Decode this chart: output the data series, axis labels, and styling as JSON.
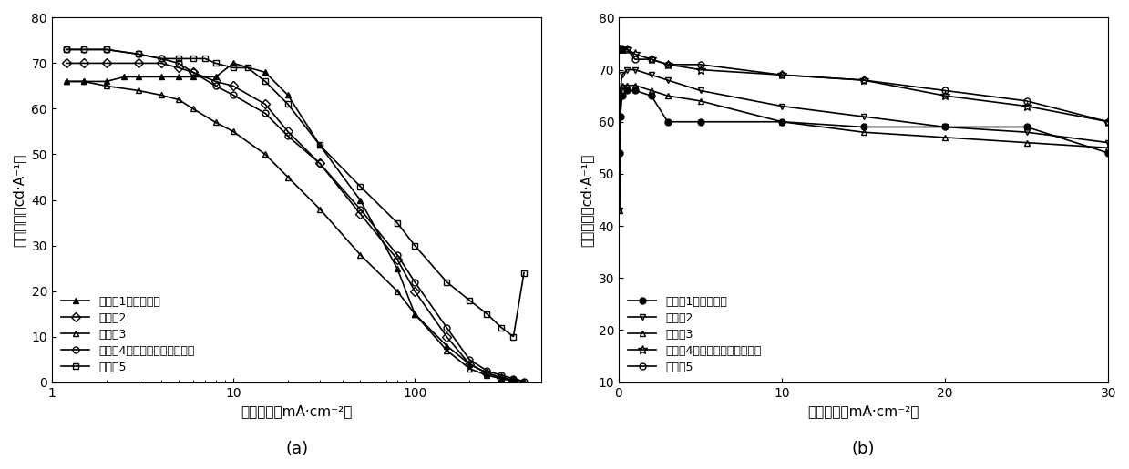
{
  "fig_width": 12.39,
  "fig_height": 5.15,
  "ylabel": "电流效率（cd·A⁻¹）",
  "xlabel_a": "电流密度（mA·cm⁻²）",
  "xlabel_b": "电流密度（mA·cm⁻²）",
  "label_a": "(a)",
  "label_b": "(b)",
  "legend_labels_a": [
    "实施例1（对比例）",
    "实施例2",
    "实施例3",
    "实施例4（本发明优选实施例）",
    "实施例5"
  ],
  "legend_labels_b": [
    "实施例1（对比例）",
    "实施例2",
    "实施例3",
    "实施例4（本发明优选实施例）",
    "实施例5"
  ],
  "plot_a": {
    "xlim": [
      1,
      500
    ],
    "ylim": [
      0,
      80
    ],
    "yticks": [
      0,
      10,
      20,
      30,
      40,
      50,
      60,
      70,
      80
    ],
    "xticks": [
      1,
      10,
      100
    ],
    "series": [
      {
        "x": [
          1.2,
          1.5,
          2,
          2.5,
          3,
          4,
          5,
          6,
          8,
          10,
          15,
          20,
          30,
          50,
          80,
          100,
          150,
          200,
          250,
          300,
          350,
          400
        ],
        "y": [
          66,
          66,
          66,
          67,
          67,
          67,
          67,
          67,
          67,
          70,
          68,
          63,
          52,
          40,
          25,
          15,
          8,
          4,
          2,
          1,
          0.5,
          0.2
        ],
        "marker": "^",
        "fillstyle": "full",
        "ms": 5,
        "lw": 1.2
      },
      {
        "x": [
          1.2,
          1.5,
          2,
          3,
          4,
          5,
          6,
          8,
          10,
          15,
          20,
          30,
          50,
          80,
          100,
          150,
          200,
          250,
          300,
          350
        ],
        "y": [
          70,
          70,
          70,
          70,
          70,
          69,
          68,
          66,
          65,
          61,
          55,
          48,
          37,
          27,
          20,
          10,
          4,
          2,
          1,
          0.3
        ],
        "marker": "D",
        "fillstyle": "none",
        "ms": 5,
        "lw": 1.2
      },
      {
        "x": [
          1.2,
          1.5,
          2,
          3,
          4,
          5,
          6,
          8,
          10,
          15,
          20,
          30,
          50,
          80,
          100,
          150,
          200,
          250,
          300,
          350
        ],
        "y": [
          66,
          66,
          65,
          64,
          63,
          62,
          60,
          57,
          55,
          50,
          45,
          38,
          28,
          20,
          15,
          7,
          3,
          1.5,
          0.8,
          0.3
        ],
        "marker": "^",
        "fillstyle": "none",
        "ms": 5,
        "lw": 1.2
      },
      {
        "x": [
          1.2,
          1.5,
          2,
          3,
          4,
          5,
          6,
          8,
          10,
          15,
          20,
          30,
          50,
          80,
          100,
          150,
          200,
          250,
          300,
          350,
          400
        ],
        "y": [
          73,
          73,
          73,
          72,
          71,
          70,
          68,
          65,
          63,
          59,
          54,
          48,
          38,
          28,
          22,
          12,
          5,
          2.5,
          1.5,
          0.8,
          0.2
        ],
        "marker": "o",
        "fillstyle": "none",
        "ms": 5,
        "lw": 1.2
      },
      {
        "x": [
          1.2,
          1.5,
          2,
          3,
          4,
          5,
          6,
          7,
          8,
          10,
          12,
          15,
          20,
          30,
          50,
          80,
          100,
          150,
          200,
          250,
          300,
          350,
          400
        ],
        "y": [
          73,
          73,
          73,
          72,
          71,
          71,
          71,
          71,
          70,
          69,
          69,
          66,
          61,
          52,
          43,
          35,
          30,
          22,
          18,
          15,
          12,
          10,
          24
        ],
        "marker": "s",
        "fillstyle": "none",
        "ms": 5,
        "lw": 1.2
      }
    ]
  },
  "plot_b": {
    "xlim": [
      0,
      30
    ],
    "ylim": [
      10,
      80
    ],
    "yticks": [
      10,
      20,
      30,
      40,
      50,
      60,
      70,
      80
    ],
    "xticks": [
      0,
      10,
      20,
      30
    ],
    "series": [
      {
        "x": [
          0.05,
          0.1,
          0.2,
          0.5,
          1,
          2,
          3,
          5,
          10,
          15,
          20,
          25,
          30
        ],
        "y": [
          54,
          61,
          65,
          66,
          66,
          65,
          60,
          60,
          60,
          59,
          59,
          59,
          54
        ],
        "marker": "o",
        "fillstyle": "full",
        "ms": 5,
        "lw": 1.2
      },
      {
        "x": [
          0.05,
          0.1,
          0.2,
          0.5,
          1,
          2,
          3,
          5,
          10,
          15,
          20,
          25,
          30
        ],
        "y": [
          43,
          66,
          69,
          70,
          70,
          69,
          68,
          66,
          63,
          61,
          59,
          58,
          56
        ],
        "marker": "v",
        "fillstyle": "none",
        "ms": 5,
        "lw": 1.2
      },
      {
        "x": [
          0.05,
          0.1,
          0.2,
          0.5,
          1,
          2,
          3,
          5,
          10,
          15,
          20,
          25,
          30
        ],
        "y": [
          43,
          65,
          67,
          67,
          67,
          66,
          65,
          64,
          60,
          58,
          57,
          56,
          55
        ],
        "marker": "^",
        "fillstyle": "none",
        "ms": 5,
        "lw": 1.2
      },
      {
        "x": [
          0.05,
          0.1,
          0.2,
          0.5,
          1,
          2,
          3,
          5,
          10,
          15,
          20,
          25,
          30
        ],
        "y": [
          74,
          74,
          74,
          74,
          73,
          72,
          71,
          70,
          69,
          68,
          65,
          63,
          60
        ],
        "marker": "*",
        "fillstyle": "none",
        "ms": 7,
        "lw": 1.2
      },
      {
        "x": [
          0.05,
          0.1,
          0.2,
          0.5,
          1,
          2,
          3,
          5,
          10,
          15,
          20,
          25,
          30
        ],
        "y": [
          74,
          74,
          74,
          74,
          72,
          72,
          71,
          71,
          69,
          68,
          66,
          64,
          60
        ],
        "marker": "o",
        "fillstyle": "none",
        "ms": 5,
        "lw": 1.2
      }
    ]
  }
}
